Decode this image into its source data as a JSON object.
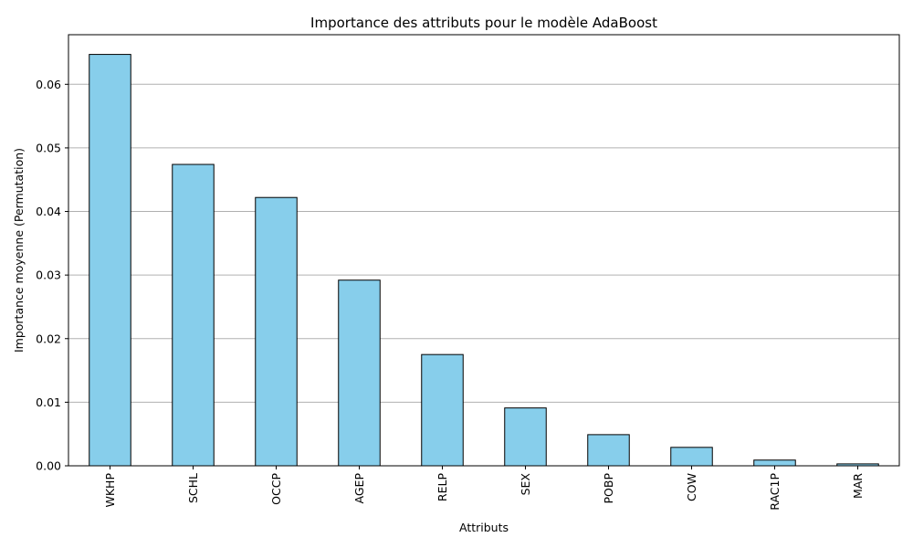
{
  "chart_data": {
    "type": "bar",
    "title": "Importance des attributs pour le modèle AdaBoost",
    "xlabel": "Attributs",
    "ylabel": "Importance moyenne (Permutation)",
    "categories": [
      "WKHP",
      "SCHL",
      "OCCP",
      "AGEP",
      "RELP",
      "SEX",
      "POBP",
      "COW",
      "RAC1P",
      "MAR"
    ],
    "values": [
      0.0647,
      0.0474,
      0.0422,
      0.0292,
      0.0175,
      0.0091,
      0.0049,
      0.0029,
      0.0009,
      0.0003
    ],
    "ylim": [
      0,
      0.0678
    ],
    "yticks": [
      0.0,
      0.01,
      0.02,
      0.03,
      0.04,
      0.05,
      0.06
    ],
    "ytick_labels": [
      "0.00",
      "0.01",
      "0.02",
      "0.03",
      "0.04",
      "0.05",
      "0.06"
    ],
    "grid": "y-axis horizontal lines",
    "bar_color": "#87ceeb",
    "bar_edge_color": "#000000",
    "grid_color": "#b0b0b0"
  }
}
